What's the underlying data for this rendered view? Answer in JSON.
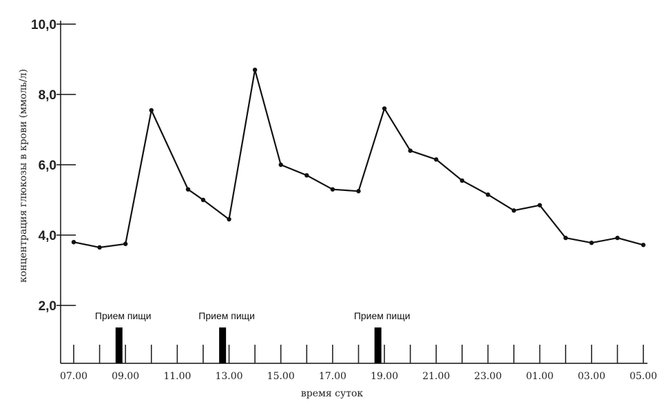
{
  "chart_data": {
    "type": "line",
    "xlabel": "время суток",
    "ylabel": "концентрация глюкозы в крови (ммоль/л)",
    "ylim": [
      0,
      10
    ],
    "y_ticks": [
      "2,0",
      "4,0",
      "6,0",
      "8,0",
      "10,0"
    ],
    "y_tick_values": [
      2,
      4,
      6,
      8,
      10
    ],
    "x_tick_labels": [
      "07.00",
      "09.00",
      "11.00",
      "13.00",
      "15.00",
      "17.00",
      "19.00",
      "21.00",
      "23.00",
      "01.00",
      "03.00",
      "05.00"
    ],
    "x_hours_elapsed_start": 7,
    "series": [
      {
        "values": [
          {
            "x": "07.00",
            "y": 3.8
          },
          {
            "x": "08.00",
            "y": 3.65
          },
          {
            "x": "09.00",
            "y": 3.75
          },
          {
            "x": "10.00",
            "y": 7.55
          },
          {
            "x": "11.25",
            "y": 5.3
          },
          {
            "x": "12.00",
            "y": 5.0
          },
          {
            "x": "13.00",
            "y": 4.45
          },
          {
            "x": "14.00",
            "y": 8.7
          },
          {
            "x": "15.00",
            "y": 6.0
          },
          {
            "x": "16.00",
            "y": 5.7
          },
          {
            "x": "17.00",
            "y": 5.3
          },
          {
            "x": "18.00",
            "y": 5.25
          },
          {
            "x": "19.00",
            "y": 7.6
          },
          {
            "x": "20.00",
            "y": 6.4
          },
          {
            "x": "21.00",
            "y": 6.15
          },
          {
            "x": "22.00",
            "y": 5.55
          },
          {
            "x": "23.00",
            "y": 5.15
          },
          {
            "x": "24.00",
            "y": 4.7
          },
          {
            "x": "01.00",
            "y": 4.85
          },
          {
            "x": "02.00",
            "y": 3.92
          },
          {
            "x": "03.00",
            "y": 3.78
          },
          {
            "x": "04.00",
            "y": 3.92
          },
          {
            "x": "05.00",
            "y": 3.72
          }
        ]
      }
    ],
    "meals": [
      {
        "label": "Прием пищи",
        "time": "08.45"
      },
      {
        "label": "Прием пищи",
        "time": "12.45"
      },
      {
        "label": "Прием пищи",
        "time": "18.45"
      }
    ],
    "grid": false,
    "legend": "none"
  }
}
